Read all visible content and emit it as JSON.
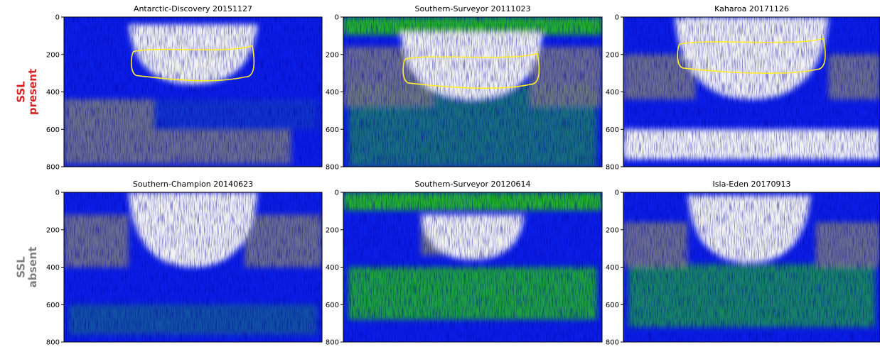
{
  "row_labels": [
    {
      "line1": "SSL",
      "line2": "present",
      "color": "#d62728"
    },
    {
      "line1": "SSL",
      "line2": "absent",
      "color": "#7f7f7f"
    }
  ],
  "panels": [
    {
      "title": "Antarctic-Discovery  20151127",
      "ylim": [
        0,
        800
      ],
      "y_inverted": true,
      "yticks": [
        0,
        200,
        400,
        600,
        800
      ]
    },
    {
      "title": "Southern-Surveyor  20111023",
      "ylim": [
        0,
        800
      ],
      "y_inverted": true,
      "yticks": [
        0,
        200,
        400,
        600,
        800
      ]
    },
    {
      "title": "Kaharoa  20171126",
      "ylim": [
        0,
        800
      ],
      "y_inverted": true,
      "yticks": [
        0,
        200,
        400,
        600,
        800
      ]
    },
    {
      "title": "Southern-Champion  20140623",
      "ylim": [
        0,
        800
      ],
      "y_inverted": true,
      "yticks": [
        0,
        200,
        400,
        600,
        800
      ]
    },
    {
      "title": "Southern-Surveyor  20120614",
      "ylim": [
        0,
        800
      ],
      "y_inverted": true,
      "yticks": [
        0,
        200,
        400,
        600,
        800
      ]
    },
    {
      "title": "Isla-Eden  20170913",
      "ylim": [
        0,
        800
      ],
      "y_inverted": true,
      "yticks": [
        0,
        200,
        400,
        600,
        800
      ]
    }
  ]
}
